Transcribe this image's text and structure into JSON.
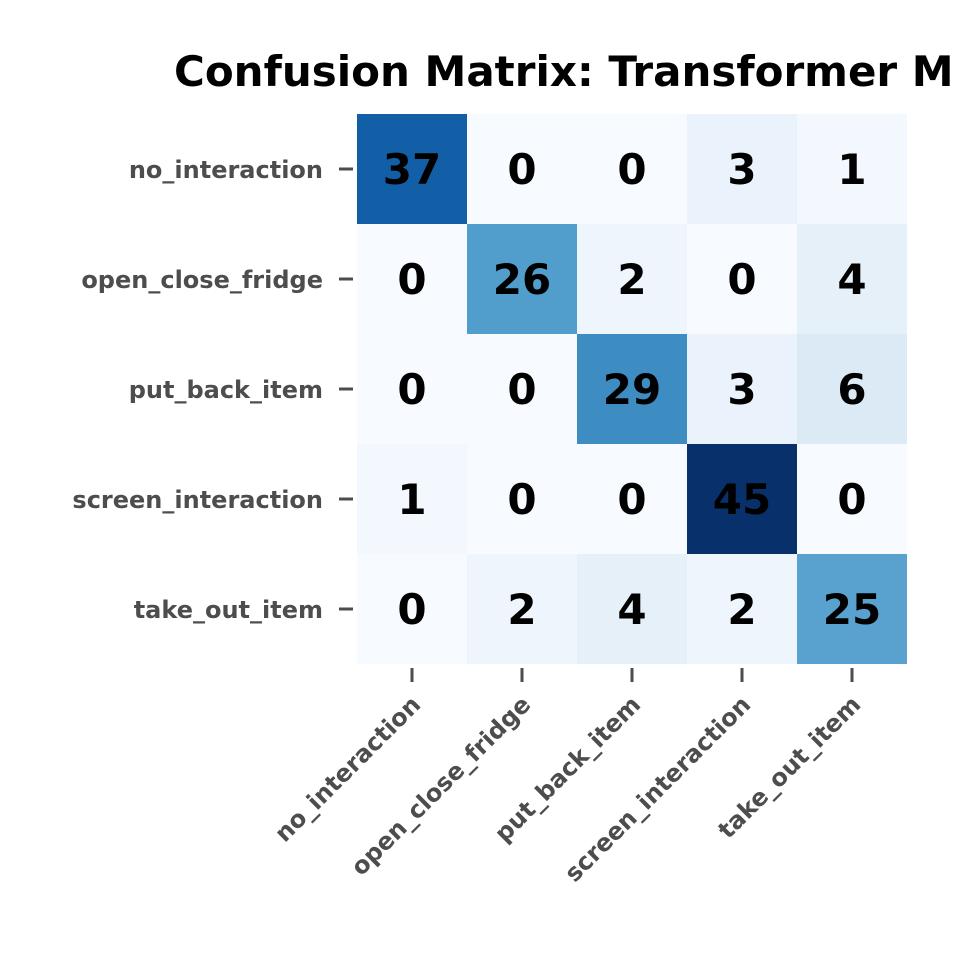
{
  "chart_data": {
    "type": "heatmap",
    "title": "Confusion Matrix: Transformer M",
    "xlabel": "",
    "ylabel": "",
    "rows": [
      "no_interaction",
      "open_close_fridge",
      "put_back_item",
      "screen_interaction",
      "take_out_item"
    ],
    "columns": [
      "no_interaction",
      "open_close_fridge",
      "put_back_item",
      "screen_interaction",
      "take_out_item"
    ],
    "values": [
      [
        37,
        0,
        0,
        3,
        1
      ],
      [
        0,
        26,
        2,
        0,
        4
      ],
      [
        0,
        0,
        29,
        3,
        6
      ],
      [
        1,
        0,
        0,
        45,
        0
      ],
      [
        0,
        2,
        4,
        2,
        25
      ]
    ],
    "colormap": "Blues",
    "vmin": 0,
    "vmax": 45,
    "colorbar": false,
    "grid": false,
    "tick_label_color": "#4d4d4d"
  }
}
